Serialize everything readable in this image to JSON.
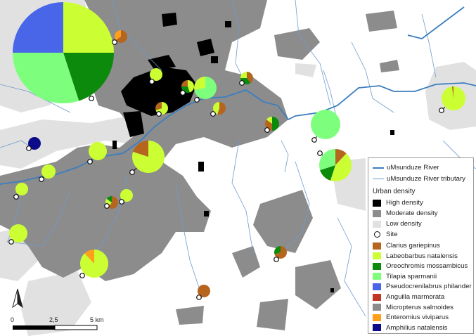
{
  "legend": {
    "river": "uMsunduze River",
    "tributary": "uMsunduze River tributary",
    "urban_title": "Urban density",
    "urban": [
      {
        "label": "High density",
        "color": "#000000"
      },
      {
        "label": "Moderate density",
        "color": "#8c8c8c"
      },
      {
        "label": "Low density",
        "color": "#e1e1e1"
      }
    ],
    "site": "Site",
    "species": [
      {
        "label": "Clarius gariepinus",
        "color": "#b5651d"
      },
      {
        "label": "Labeobarbus natalensis",
        "color": "#ccff33"
      },
      {
        "label": "Oreochromis mossambicus",
        "color": "#0b8a0b"
      },
      {
        "label": "Tilapia sparmanii",
        "color": "#7dff7d"
      },
      {
        "label": "Pseudocrenilabrus philander",
        "color": "#4a66e8"
      },
      {
        "label": "Anguilla marmorata",
        "color": "#c03525"
      },
      {
        "label": "Micropterus salmoides",
        "color": "#8c8c8c"
      },
      {
        "label": "Enteromius viviparus",
        "color": "#ff9f1a"
      },
      {
        "label": "Amphilius natalensis",
        "color": "#0c0c8a"
      }
    ]
  },
  "scale": {
    "ticks": [
      "0",
      "2,5",
      "5 km"
    ]
  },
  "north_arrow": "north-arrow",
  "colors": {
    "river": "#3b7ec0",
    "tributary": "#6e9ccc"
  },
  "sites": [
    {
      "id": "s1",
      "pie": [
        {
          "sp": "Labeobarbus natalensis",
          "v": 25
        },
        {
          "sp": "Oreochromis mossambicus",
          "v": 20
        },
        {
          "sp": "Tilapia sparmanii",
          "v": 30
        },
        {
          "sp": "Pseudocrenilabrus philander",
          "v": 25
        }
      ]
    },
    {
      "id": "s2",
      "pie": [
        {
          "sp": "Clarius gariepinus",
          "v": 65
        },
        {
          "sp": "Enteromius viviparus",
          "v": 35
        }
      ]
    },
    {
      "id": "s3",
      "pie": [
        {
          "sp": "Labeobarbus natalensis",
          "v": 100
        }
      ]
    },
    {
      "id": "s4",
      "pie": [
        {
          "sp": "Labeobarbus natalensis",
          "v": 45
        },
        {
          "sp": "Oreochromis mossambicus",
          "v": 30
        },
        {
          "sp": "Clarius gariepinus",
          "v": 25
        }
      ]
    },
    {
      "id": "s5",
      "pie": [
        {
          "sp": "Tilapia sparmanii",
          "v": 72
        },
        {
          "sp": "Labeobarbus natalensis",
          "v": 28
        }
      ]
    },
    {
      "id": "s6",
      "pie": [
        {
          "sp": "Clarius gariepinus",
          "v": 40
        },
        {
          "sp": "Oreochromis mossambicus",
          "v": 35
        },
        {
          "sp": "Labeobarbus natalensis",
          "v": 25
        }
      ]
    },
    {
      "id": "s7",
      "pie": [
        {
          "sp": "Labeobarbus natalensis",
          "v": 70
        },
        {
          "sp": "Clarius gariepinus",
          "v": 30
        }
      ]
    },
    {
      "id": "s8",
      "pie": [
        {
          "sp": "Clarius gariepinus",
          "v": 55
        },
        {
          "sp": "Labeobarbus natalensis",
          "v": 45
        }
      ]
    },
    {
      "id": "s9",
      "pie": [
        {
          "sp": "Oreochromis mossambicus",
          "v": 50
        },
        {
          "sp": "Clarius gariepinus",
          "v": 35
        },
        {
          "sp": "Labeobarbus natalensis",
          "v": 15
        }
      ]
    },
    {
      "id": "s10",
      "pie": [
        {
          "sp": "Tilapia sparmanii",
          "v": 100
        }
      ]
    },
    {
      "id": "s11",
      "pie": [
        {
          "sp": "Clarius gariepinus",
          "v": 12
        },
        {
          "sp": "Labeobarbus natalensis",
          "v": 43
        },
        {
          "sp": "Oreochromis mossambicus",
          "v": 15
        },
        {
          "sp": "Tilapia sparmanii",
          "v": 30
        }
      ]
    },
    {
      "id": "s12",
      "pie": [
        {
          "sp": "Labeobarbus natalensis",
          "v": 98
        },
        {
          "sp": "Clarius gariepinus",
          "v": 2
        }
      ]
    },
    {
      "id": "s13",
      "pie": [
        {
          "sp": "Amphilius natalensis",
          "v": 100
        }
      ]
    },
    {
      "id": "s14",
      "pie": [
        {
          "sp": "Labeobarbus natalensis",
          "v": 100
        }
      ]
    },
    {
      "id": "s15",
      "pie": [
        {
          "sp": "Labeobarbus natalensis",
          "v": 80
        },
        {
          "sp": "Clarius gariepinus",
          "v": 20
        }
      ]
    },
    {
      "id": "s16",
      "pie": [
        {
          "sp": "Labeobarbus natalensis",
          "v": 100
        }
      ]
    },
    {
      "id": "s17",
      "pie": [
        {
          "sp": "Labeobarbus natalensis",
          "v": 100
        }
      ]
    },
    {
      "id": "s18",
      "pie": [
        {
          "sp": "Clarius gariepinus",
          "v": 60
        },
        {
          "sp": "Labeobarbus natalensis",
          "v": 25
        },
        {
          "sp": "Oreochromis mossambicus",
          "v": 15
        }
      ]
    },
    {
      "id": "s19",
      "pie": [
        {
          "sp": "Labeobarbus natalensis",
          "v": 100
        }
      ]
    },
    {
      "id": "s20",
      "pie": [
        {
          "sp": "Labeobarbus natalensis",
          "v": 100
        }
      ]
    },
    {
      "id": "s21",
      "pie": [
        {
          "sp": "Labeobarbus natalensis",
          "v": 88
        },
        {
          "sp": "Enteromius viviparus",
          "v": 12
        }
      ]
    },
    {
      "id": "s22",
      "pie": [
        {
          "sp": "Clarius gariepinus",
          "v": 70
        },
        {
          "sp": "Oreochromis mossambicus",
          "v": 30
        }
      ]
    },
    {
      "id": "s23",
      "pie": [
        {
          "sp": "Clarius gariepinus",
          "v": 100
        }
      ]
    }
  ]
}
